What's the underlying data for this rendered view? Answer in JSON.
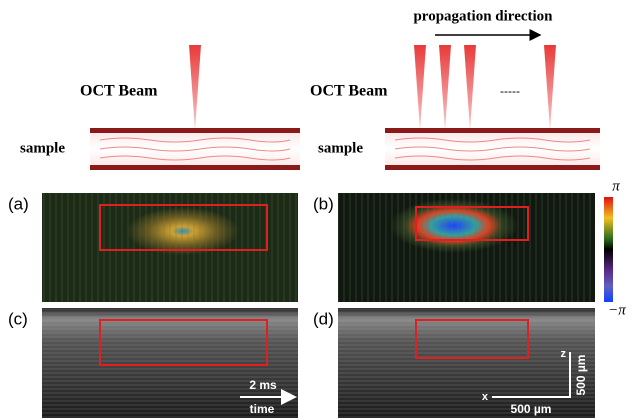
{
  "schematic": {
    "left": {
      "beam_label": "OCT Beam",
      "sample_label": "sample"
    },
    "right": {
      "beam_label": "OCT Beam",
      "sample_label": "sample",
      "direction_label": "propagation direction",
      "ellipsis": "-----"
    }
  },
  "panels": [
    {
      "label": "(a)"
    },
    {
      "label": "(b)"
    },
    {
      "label": "(c)",
      "scale_bar": "2 ms",
      "axis_label": "time"
    },
    {
      "label": "(d)",
      "scale_bar_x": "500 µm",
      "scale_bar_z": "500 µm",
      "x_axis": "x",
      "z_axis": "z"
    }
  ],
  "colorbar": {
    "max_label": "π",
    "min_label": "−π"
  }
}
